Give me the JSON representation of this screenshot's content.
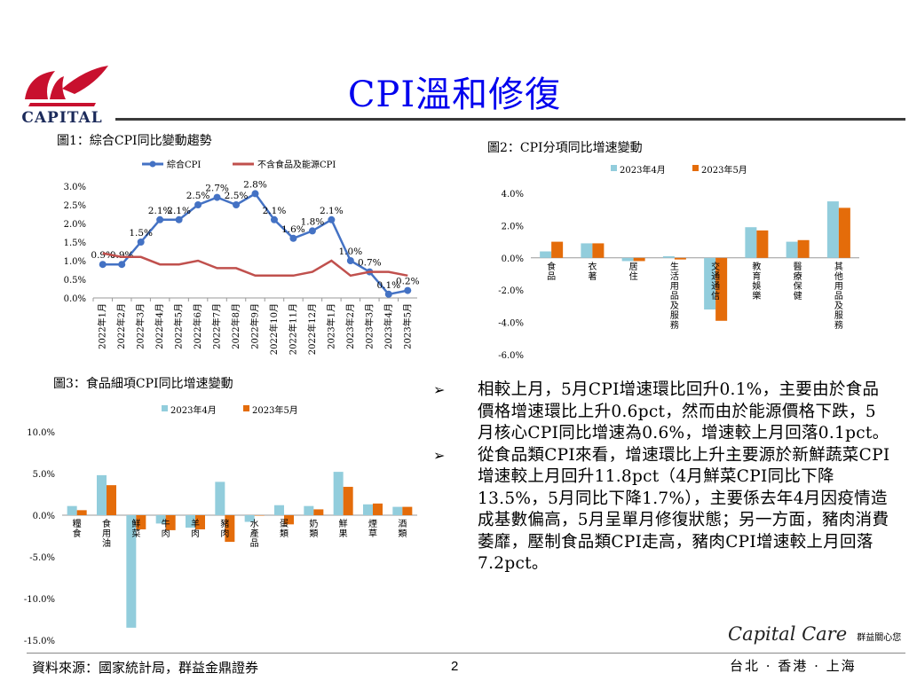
{
  "header": {
    "title": "CPI溫和修復",
    "logo_text": "CAPITAL"
  },
  "figures": {
    "fig1_title": "圖1：綜合CPI同比變動趨勢",
    "fig2_title": "圖2：CPI分項同比增速變動",
    "fig3_title": "圖3：食品細項CPI同比增速變動"
  },
  "chart_data": [
    {
      "type": "line",
      "categories": [
        "2022年1月",
        "2022年2月",
        "2022年3月",
        "2022年4月",
        "2022年5月",
        "2022年6月",
        "2022年7月",
        "2022年8月",
        "2022年9月",
        "2022年10月",
        "2022年11月",
        "2022年12月",
        "2023年1月",
        "2023年2月",
        "2023年3月",
        "2023年4月",
        "2023年5月"
      ],
      "series": [
        {
          "name": "綜合CPI",
          "color": "#4472c4",
          "values": [
            0.9,
            0.9,
            1.5,
            2.1,
            2.1,
            2.5,
            2.7,
            2.5,
            2.8,
            2.1,
            1.6,
            1.8,
            2.1,
            1.0,
            0.7,
            0.1,
            0.2
          ],
          "labels": [
            "0.9%",
            "0.9%",
            "1.5%",
            "2.1%",
            "2.1%",
            "2.5%",
            "2.7%",
            "2.5%",
            "2.8%",
            "2.1%",
            "1.6%",
            "1.8%",
            "2.1%",
            "1.0%",
            "0.7%",
            "0.1%",
            "0.2%"
          ]
        },
        {
          "name": "不含食品及能源CPI",
          "color": "#c0504d",
          "values": [
            1.2,
            1.1,
            1.1,
            0.9,
            0.9,
            1.0,
            0.8,
            0.8,
            0.6,
            0.6,
            0.6,
            0.7,
            1.0,
            0.6,
            0.7,
            0.7,
            0.6
          ]
        }
      ],
      "yticks": [
        "3.0%",
        "2.5%",
        "2.0%",
        "1.5%",
        "1.0%",
        "0.5%",
        "0.0%"
      ],
      "ylim": [
        0,
        3
      ],
      "legend": "top"
    },
    {
      "type": "bar",
      "categories": [
        "食品",
        "衣著",
        "居住",
        "生活用品及服務",
        "交通通信",
        "教育娛樂",
        "醫療保健",
        "其他用品及服務"
      ],
      "series": [
        {
          "name": "2023年4月",
          "color": "#92cddc",
          "values": [
            0.4,
            0.9,
            -0.2,
            0.1,
            -3.2,
            1.9,
            1.0,
            3.5
          ]
        },
        {
          "name": "2023年5月",
          "color": "#e46c0a",
          "values": [
            1.0,
            0.9,
            -0.2,
            -0.1,
            -3.9,
            1.7,
            1.1,
            3.1
          ]
        }
      ],
      "yticks": [
        "4.0%",
        "2.0%",
        "0.0%",
        "-2.0%",
        "-4.0%",
        "-6.0%"
      ],
      "ylim": [
        -6,
        4
      ],
      "legend": "top"
    },
    {
      "type": "bar",
      "categories": [
        "糧食",
        "食用油",
        "鮮菜",
        "牛肉",
        "羊肉",
        "豬肉",
        "水產品",
        "蛋類",
        "奶類",
        "鮮果",
        "煙草",
        "酒類"
      ],
      "series": [
        {
          "name": "2023年4月",
          "color": "#92cddc",
          "values": [
            1.1,
            4.8,
            -13.5,
            -1.0,
            -1.5,
            4.0,
            -0.8,
            1.2,
            1.1,
            5.2,
            1.3,
            1.0
          ]
        },
        {
          "name": "2023年5月",
          "color": "#e46c0a",
          "values": [
            0.6,
            3.6,
            -1.7,
            -1.8,
            -1.7,
            -3.2,
            0.0,
            -1.1,
            0.7,
            3.4,
            1.4,
            1.0
          ]
        }
      ],
      "yticks": [
        "10.0%",
        "5.0%",
        "0.0%",
        "-5.0%",
        "-10.0%",
        "-15.0%"
      ],
      "ylim": [
        -15,
        10
      ],
      "legend": "top"
    }
  ],
  "bullets": [
    {
      "marker": "➢",
      "text": "相較上月，5月CPI增速環比回升0.1%，主要由於食品價格增速環比上升0.6pct，然而由於能源價格下跌，5月核心CPI同比增速為0.6%，增速較上月回落0.1pct。"
    },
    {
      "marker": "➢",
      "text": "從食品類CPI來看，增速環比上升主要源於新鮮蔬菜CPI增速較上月回升11.8pct（4月鮮菜CPI同比下降13.5%，5月同比下降1.7%），主要係去年4月因疫情造成基數偏高，5月呈單月修復狀態；另一方面，豬肉消費萎靡，壓制食品類CPI走高，豬肉CPI增速較上月回落7.2pct。"
    }
  ],
  "footer": {
    "source": "資料來源：國家統計局，群益金鼎證券",
    "page_number": "2",
    "brand_script": "Capital Care",
    "brand_tagline": "群益關心您",
    "locations": "台北 · 香港 · 上海",
    "colors": {
      "logo_red": "#c8102e",
      "logo_navy": "#1b2a5a",
      "title_blue": "#0000ee"
    }
  }
}
